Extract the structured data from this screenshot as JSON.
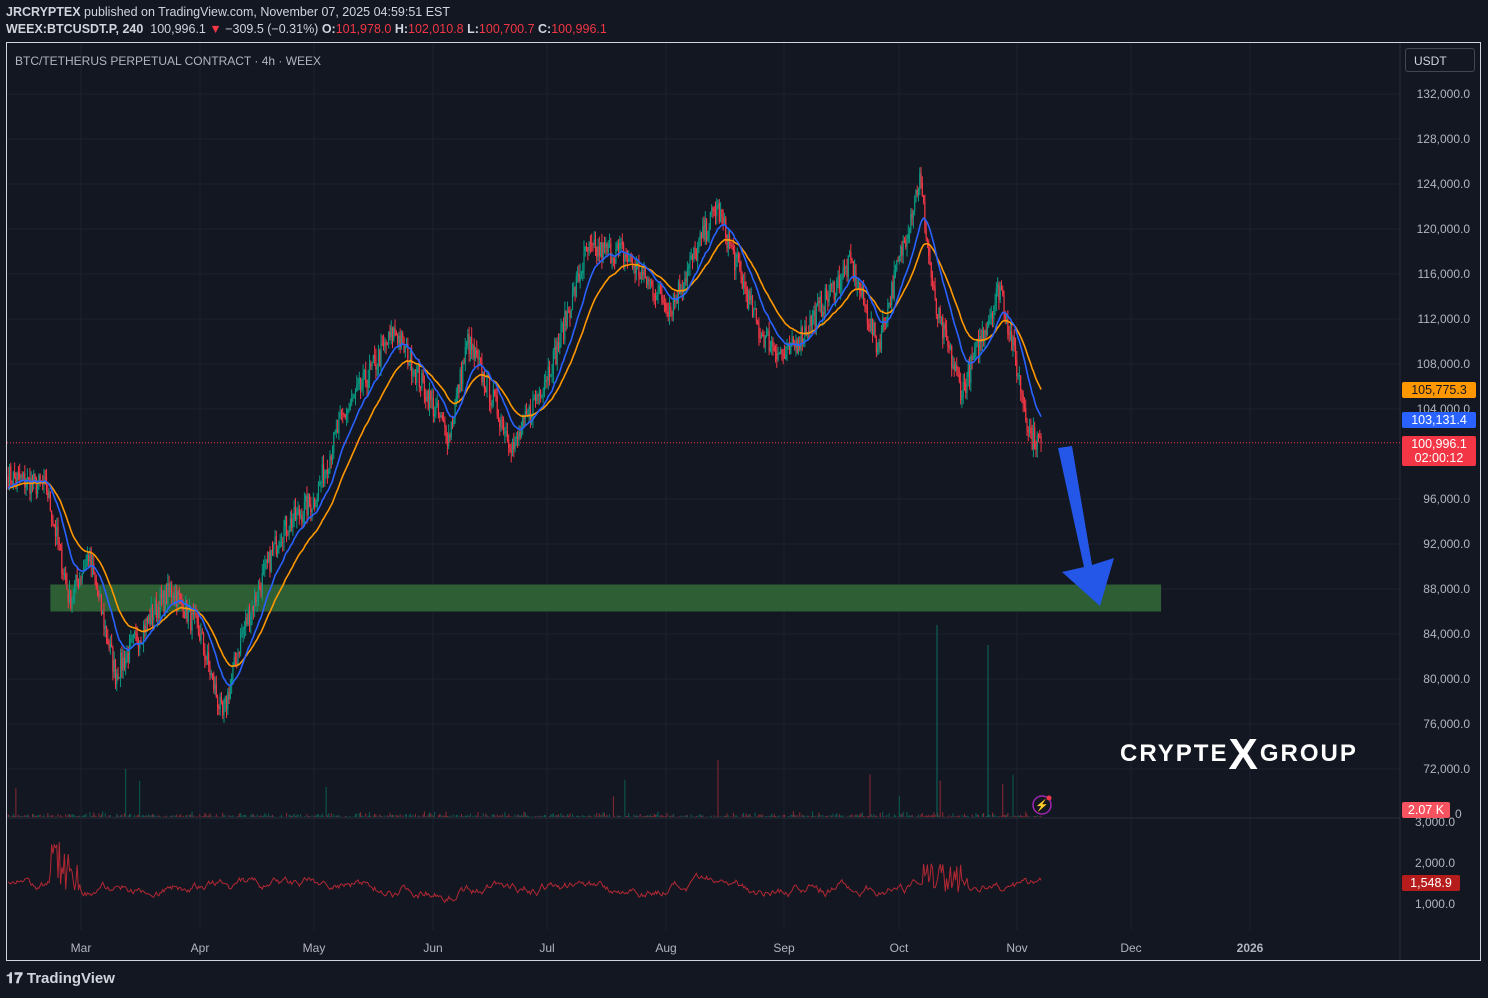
{
  "header": {
    "author": "JRCRYPTEX",
    "published": "published on TradingView.com, November 07, 2025 04:59:51 EST",
    "symbol": "WEEX:BTCUSDT.P, 240",
    "last": "100,996.1",
    "change": "−309.5 (−0.31%)",
    "o_label": "O:",
    "o": "101,978.0",
    "h_label": "H:",
    "h": "102,010.8",
    "l_label": "L:",
    "l": "100,700.7",
    "c_label": "C:",
    "c": "100,996.1"
  },
  "chart_title": "BTC/TETHERUS PERPETUAL CONTRACT · 4h · WEEX",
  "currency": "USDT",
  "brand": "TradingView",
  "watermark": {
    "left": "CRYPTE",
    "x": "X",
    "right": "GROUP"
  },
  "colors": {
    "up": "#089981",
    "down": "#f23645",
    "ema_fast": "#2962ff",
    "ema_slow": "#ff9800",
    "zone": "#2e5e34",
    "arrow": "#2456e8"
  },
  "chart_data": {
    "type": "candlestick",
    "timeframe": "4h",
    "x_ticks": [
      "Mar",
      "Apr",
      "May",
      "Jun",
      "Jul",
      "Aug",
      "Sep",
      "Oct",
      "Nov",
      "Dec",
      "2026"
    ],
    "y_ticks": [
      132000,
      128000,
      124000,
      120000,
      116000,
      112000,
      108000,
      104000,
      96000,
      92000,
      88000,
      84000,
      80000,
      76000,
      72000
    ],
    "y_range": [
      70000,
      134000
    ],
    "price_path": [
      [
        "2025-02-10",
        98000
      ],
      [
        "2025-02-20",
        97000
      ],
      [
        "2025-02-26",
        87000
      ],
      [
        "2025-03-03",
        91000
      ],
      [
        "2025-03-10",
        80500
      ],
      [
        "2025-03-20",
        86000
      ],
      [
        "2025-03-25",
        88000
      ],
      [
        "2025-04-01",
        84000
      ],
      [
        "2025-04-07",
        76500
      ],
      [
        "2025-04-12",
        84000
      ],
      [
        "2025-04-22",
        93000
      ],
      [
        "2025-05-01",
        96000
      ],
      [
        "2025-05-08",
        103000
      ],
      [
        "2025-05-22",
        111000
      ],
      [
        "2025-06-05",
        101500
      ],
      [
        "2025-06-10",
        110000
      ],
      [
        "2025-06-22",
        100500
      ],
      [
        "2025-07-03",
        109000
      ],
      [
        "2025-07-11",
        118000
      ],
      [
        "2025-07-20",
        118000
      ],
      [
        "2025-08-02",
        113000
      ],
      [
        "2025-08-14",
        122000
      ],
      [
        "2025-08-25",
        111000
      ],
      [
        "2025-09-01",
        108500
      ],
      [
        "2025-09-18",
        117000
      ],
      [
        "2025-09-25",
        109500
      ],
      [
        "2025-10-06",
        124500
      ],
      [
        "2025-10-10",
        113000
      ],
      [
        "2025-10-17",
        105500
      ],
      [
        "2025-10-27",
        115000
      ],
      [
        "2025-11-04",
        101500
      ],
      [
        "2025-11-07",
        100996.1
      ]
    ],
    "support_zone": {
      "low": 86000,
      "high": 88400,
      "from": "2025-02-21",
      "to": "2025-12-08"
    },
    "labels": {
      "ema_slow": "105,775.3",
      "ema_fast": "103,131.4",
      "last": "100,996.1",
      "countdown": "02:00:12",
      "volume": "2.07 K",
      "osc": "1,548.9"
    },
    "osc_ticks": [
      "3,000.0",
      "2,000.0",
      "1,000.0"
    ],
    "volume_tick": "0"
  }
}
